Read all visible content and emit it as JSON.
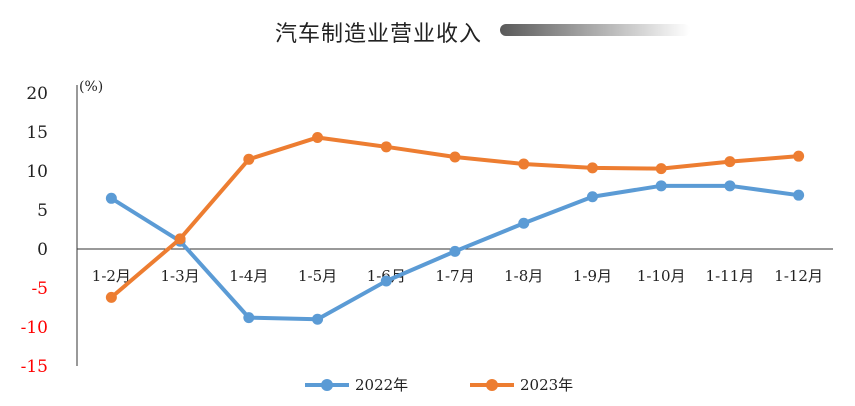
{
  "chart_data": {
    "type": "line",
    "title": "汽车制造业营业收入",
    "ylabel": "(%)",
    "categories": [
      "1-2月",
      "1-3月",
      "1-4月",
      "1-5月",
      "1-6月",
      "1-7月",
      "1-8月",
      "1-9月",
      "1-10月",
      "1-11月",
      "1-12月"
    ],
    "series": [
      {
        "name": "2022年",
        "color": "#5B9BD5",
        "values": [
          6.5,
          1.0,
          -8.8,
          -9.0,
          -4.1,
          -0.3,
          3.3,
          6.7,
          8.1,
          8.1,
          6.9
        ]
      },
      {
        "name": "2023年",
        "color": "#ED7D31",
        "values": [
          -6.2,
          1.3,
          11.5,
          14.3,
          13.1,
          11.8,
          10.9,
          10.4,
          10.3,
          11.2,
          11.9
        ]
      }
    ],
    "ylim": [
      -15,
      20
    ],
    "yticks": [
      20,
      15,
      10,
      5,
      0,
      -5,
      -10,
      -15
    ],
    "negative_tick_color": "#FF0000",
    "grid": false,
    "legend_position": "bottom"
  }
}
